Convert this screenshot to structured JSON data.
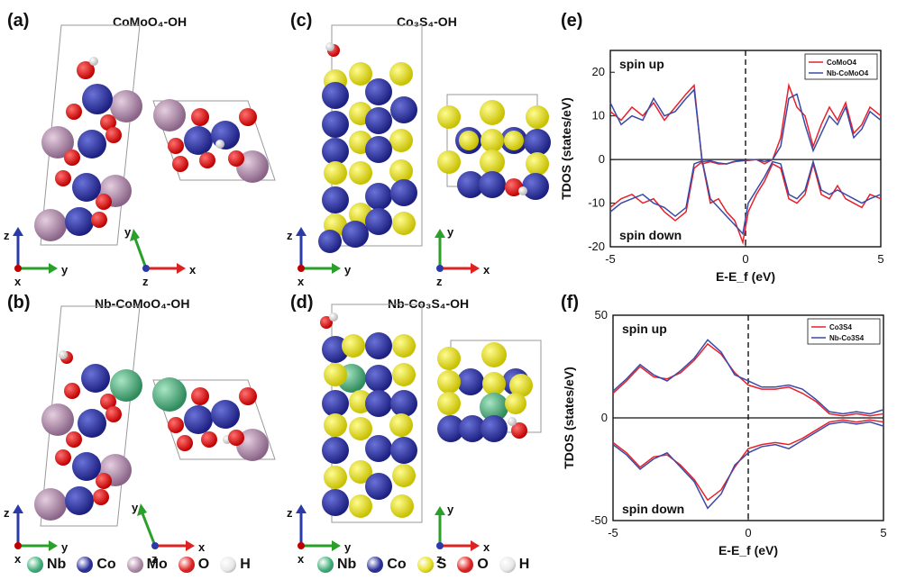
{
  "panels": {
    "a": {
      "label": "(a)",
      "title": "CoMoO₄-OH"
    },
    "b": {
      "label": "(b)",
      "title": "Nb-CoMoO₄-OH"
    },
    "c": {
      "label": "(c)",
      "title": "Co₃S₄-OH"
    },
    "d": {
      "label": "(d)",
      "title": "Nb-Co₃S₄-OH"
    },
    "e": {
      "label": "(e)"
    },
    "f": {
      "label": "(f)"
    }
  },
  "axes_triad": {
    "z": "z",
    "y": "y",
    "x": "x"
  },
  "legend_left": [
    {
      "label": "Nb",
      "color": "#3fae7a",
      "icon": "nb-atom"
    },
    {
      "label": "Co",
      "color": "#2a2f9a",
      "icon": "co-atom"
    },
    {
      "label": "Mo",
      "color": "#b08aa8",
      "icon": "mo-atom"
    },
    {
      "label": "O",
      "color": "#e02020",
      "icon": "o-atom"
    },
    {
      "label": "H",
      "color": "#e8e8e8",
      "icon": "h-atom"
    }
  ],
  "legend_right": [
    {
      "label": "Nb",
      "color": "#3fae7a",
      "icon": "nb-atom"
    },
    {
      "label": "Co",
      "color": "#2a2f9a",
      "icon": "co-atom"
    },
    {
      "label": "S",
      "color": "#e6e020",
      "icon": "s-atom"
    },
    {
      "label": "O",
      "color": "#e02020",
      "icon": "o-atom"
    },
    {
      "label": "H",
      "color": "#e8e8e8",
      "icon": "h-atom"
    }
  ],
  "colors": {
    "red_series": "#e8202a",
    "blue_series": "#3a4aa8"
  },
  "chart_data": [
    {
      "id": "e",
      "type": "line",
      "xlabel": "E-E_f (eV)",
      "ylabel": "TDOS (states/eV)",
      "xlim": [
        -5,
        5
      ],
      "ylim": [
        -20,
        25
      ],
      "xticks": [
        -5,
        0,
        5
      ],
      "yticks": [
        -20,
        -10,
        0,
        10,
        20
      ],
      "annotations": [
        "spin up",
        "spin down"
      ],
      "legend_position": "top-right",
      "series": [
        {
          "name": "CoMoO4",
          "color": "#e8202a",
          "x": [
            -5,
            -4.6,
            -4.2,
            -3.8,
            -3.4,
            -3.0,
            -2.6,
            -2.2,
            -1.9,
            -1.6,
            -1.3,
            -1.0,
            -0.7,
            -0.4,
            -0.1,
            0.1,
            0.4,
            0.7,
            1.0,
            1.3,
            1.6,
            1.9,
            2.2,
            2.5,
            2.8,
            3.1,
            3.4,
            3.7,
            4.0,
            4.3,
            4.6,
            5.0
          ],
          "y": [
            11,
            9,
            12,
            10,
            13,
            9,
            12,
            15,
            17,
            -1,
            -0.5,
            -1,
            -1,
            -0.5,
            -0.3,
            -0.2,
            0,
            -1,
            0,
            5,
            17,
            12,
            10,
            3,
            8,
            12,
            9,
            13,
            6,
            8,
            12,
            10
          ]
        },
        {
          "name": "Nb-CoMoO4",
          "color": "#3a4aa8",
          "x": [
            -5,
            -4.6,
            -4.2,
            -3.8,
            -3.4,
            -3.0,
            -2.6,
            -2.2,
            -1.9,
            -1.6,
            -1.3,
            -1.0,
            -0.7,
            -0.4,
            -0.1,
            0.1,
            0.4,
            0.7,
            1.0,
            1.3,
            1.6,
            1.9,
            2.2,
            2.5,
            2.8,
            3.1,
            3.4,
            3.7,
            4.0,
            4.3,
            4.6,
            5.0
          ],
          "y": [
            13,
            8,
            10,
            9,
            14,
            10,
            11,
            14,
            16,
            -0.5,
            -0.3,
            -0.8,
            -1,
            -0.4,
            -0.2,
            -0.1,
            0,
            -0.5,
            0,
            3,
            14,
            15,
            8,
            2,
            6,
            10,
            8,
            12,
            5,
            7,
            11,
            9
          ]
        },
        {
          "name": "CoMoO4 (down)",
          "color": "#e8202a",
          "x": [
            -5,
            -4.6,
            -4.2,
            -3.8,
            -3.4,
            -3.0,
            -2.6,
            -2.2,
            -1.9,
            -1.6,
            -1.3,
            -1.0,
            -0.7,
            -0.4,
            -0.1,
            0.1,
            0.4,
            0.7,
            1.0,
            1.3,
            1.6,
            1.9,
            2.2,
            2.5,
            2.8,
            3.1,
            3.4,
            3.7,
            4.0,
            4.3,
            4.6,
            5.0
          ],
          "y": [
            -11,
            -9,
            -8,
            -10,
            -9,
            -12,
            -14,
            -12,
            -2,
            -0.5,
            -10,
            -9,
            -12,
            -14,
            -19,
            -12,
            -8,
            -5,
            -1,
            -2,
            -9,
            -10,
            -8,
            -1,
            -8,
            -9,
            -6,
            -9,
            -10,
            -11,
            -8,
            -9
          ]
        },
        {
          "name": "Nb-CoMoO4 (down)",
          "color": "#3a4aa8",
          "x": [
            -5,
            -4.6,
            -4.2,
            -3.8,
            -3.4,
            -3.0,
            -2.6,
            -2.2,
            -1.9,
            -1.6,
            -1.3,
            -1.0,
            -0.7,
            -0.4,
            -0.1,
            0.1,
            0.4,
            0.7,
            1.0,
            1.3,
            1.6,
            1.9,
            2.2,
            2.5,
            2.8,
            3.1,
            3.4,
            3.7,
            4.0,
            4.3,
            4.6,
            5.0
          ],
          "y": [
            -12,
            -10,
            -9,
            -8,
            -10,
            -11,
            -13,
            -11,
            -1,
            -0.3,
            -9,
            -11,
            -13,
            -15,
            -17,
            -10,
            -7,
            -4,
            -0.5,
            -1,
            -8,
            -9,
            -7,
            -0.5,
            -7,
            -8,
            -7,
            -8,
            -9,
            -10,
            -9,
            -8
          ]
        }
      ]
    },
    {
      "id": "f",
      "type": "line",
      "xlabel": "E-E_f (eV)",
      "ylabel": "TDOS (states/eV)",
      "xlim": [
        -5,
        5
      ],
      "ylim": [
        -50,
        50
      ],
      "xticks": [
        -5,
        0,
        5
      ],
      "yticks": [
        -50,
        0,
        50
      ],
      "annotations": [
        "spin up",
        "spin down"
      ],
      "legend_position": "top-right",
      "series": [
        {
          "name": "Co3S4",
          "color": "#e8202a",
          "x": [
            -5,
            -4.5,
            -4,
            -3.5,
            -3,
            -2.5,
            -2,
            -1.5,
            -1,
            -0.5,
            0,
            0.5,
            1,
            1.5,
            2,
            2.5,
            3,
            3.5,
            4,
            4.5,
            5
          ],
          "y": [
            12,
            18,
            25,
            20,
            19,
            22,
            28,
            36,
            31,
            22,
            16,
            14,
            14,
            15,
            12,
            8,
            2,
            1,
            2,
            1,
            2
          ]
        },
        {
          "name": "Nb-Co3S4",
          "color": "#3a4aa8",
          "x": [
            -5,
            -4.5,
            -4,
            -3.5,
            -3,
            -2.5,
            -2,
            -1.5,
            -1,
            -0.5,
            0,
            0.5,
            1,
            1.5,
            2,
            2.5,
            3,
            3.5,
            4,
            4.5,
            5
          ],
          "y": [
            13,
            19,
            26,
            21,
            18,
            23,
            29,
            38,
            32,
            21,
            18,
            15,
            15,
            16,
            14,
            9,
            3,
            2,
            3,
            2,
            4
          ]
        },
        {
          "name": "Co3S4 (down)",
          "color": "#e8202a",
          "x": [
            -5,
            -4.5,
            -4,
            -3.5,
            -3,
            -2.5,
            -2,
            -1.5,
            -1,
            -0.5,
            0,
            0.5,
            1,
            1.5,
            2,
            2.5,
            3,
            3.5,
            4,
            4.5,
            5
          ],
          "y": [
            -12,
            -17,
            -24,
            -19,
            -18,
            -23,
            -30,
            -40,
            -35,
            -24,
            -15,
            -13,
            -12,
            -13,
            -10,
            -6,
            -2,
            -1,
            -2,
            -1,
            -2
          ]
        },
        {
          "name": "Nb-Co3S4 (down)",
          "color": "#3a4aa8",
          "x": [
            -5,
            -4.5,
            -4,
            -3.5,
            -3,
            -2.5,
            -2,
            -1.5,
            -1,
            -0.5,
            0,
            0.5,
            1,
            1.5,
            2,
            2.5,
            3,
            3.5,
            4,
            4.5,
            5
          ],
          "y": [
            -13,
            -18,
            -25,
            -20,
            -17,
            -24,
            -31,
            -44,
            -37,
            -23,
            -17,
            -14,
            -13,
            -15,
            -11,
            -7,
            -3,
            -2,
            -3,
            -2,
            -4
          ]
        }
      ]
    }
  ]
}
